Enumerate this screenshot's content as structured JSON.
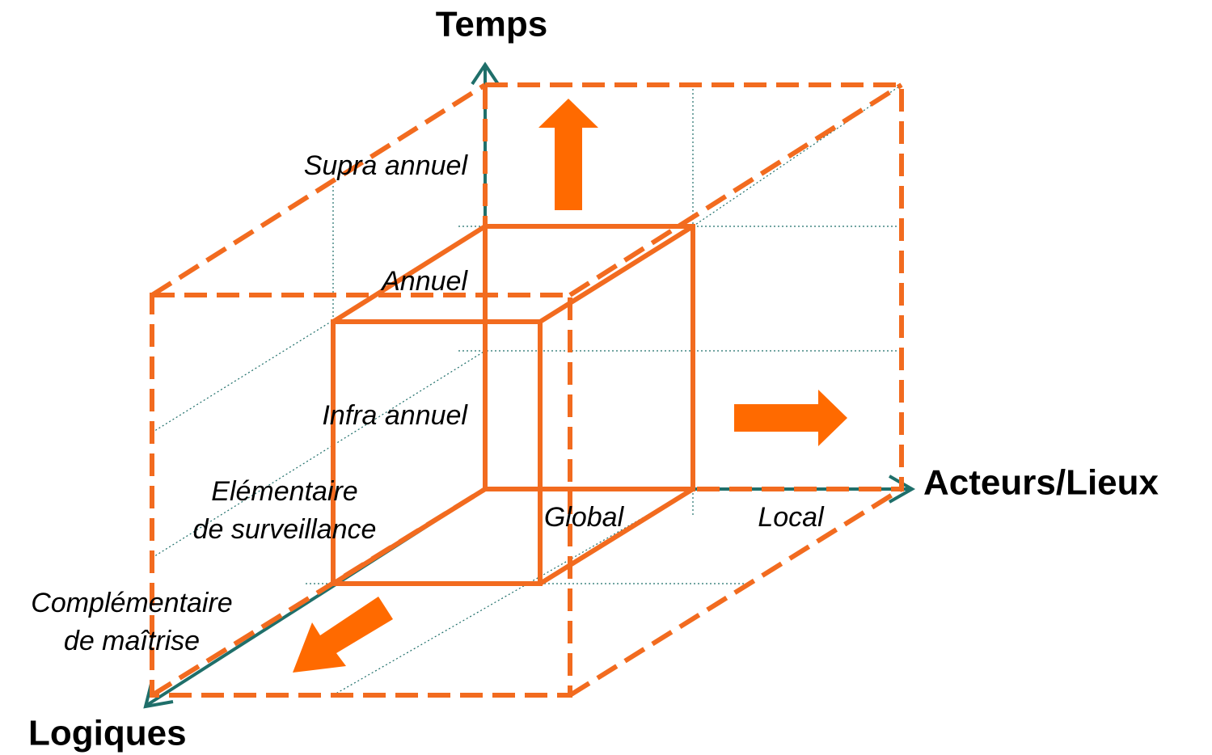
{
  "axes": {
    "time": {
      "label": "Temps",
      "levels": [
        "Supra annuel",
        "Annuel",
        "Infra annuel"
      ]
    },
    "actors": {
      "label": "Acteurs/Lieux",
      "levels": [
        "Global",
        "Local"
      ]
    },
    "logics": {
      "label": "Logiques",
      "levels": [
        [
          "Elémentaire",
          "de surveillance"
        ],
        [
          "Complémentaire",
          "de maîtrise"
        ]
      ]
    }
  }
}
